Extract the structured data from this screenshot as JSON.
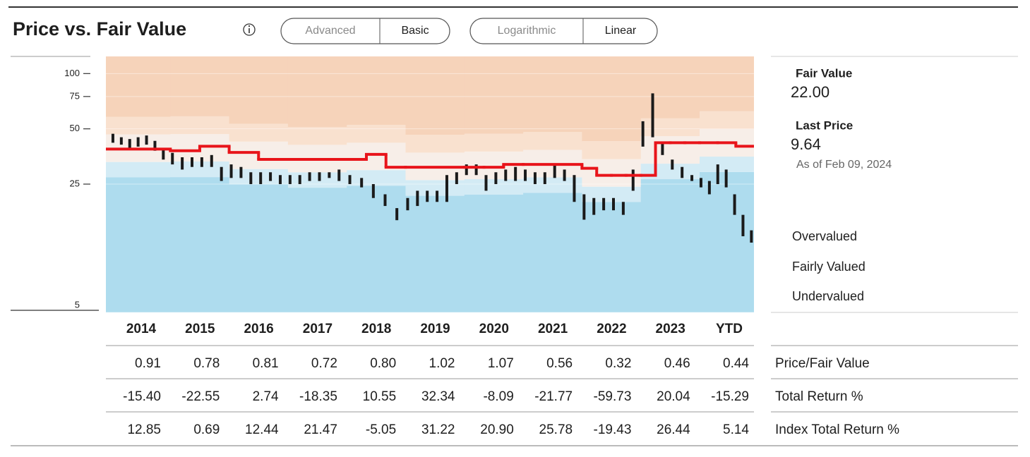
{
  "header": {
    "title": "Price vs. Fair Value",
    "toggles": [
      [
        "Advanced",
        "Basic"
      ],
      [
        "Logarithmic",
        "Linear"
      ]
    ]
  },
  "chart_data": {
    "type": "valuation",
    "log_scale": true,
    "ylim": [
      5,
      124
    ],
    "yticks": [
      5,
      25,
      50,
      75,
      100
    ],
    "grid": true,
    "columns": [
      "2014",
      "2015",
      "2016",
      "2017",
      "2018",
      "2019",
      "2020",
      "2021",
      "2022",
      "2023",
      "YTD"
    ],
    "fair_value": {
      "color": "#e8141a",
      "values": [
        [
          38.8
        ],
        [
          38.0,
          40.2
        ],
        [
          37.2,
          34.1
        ],
        [
          34.1
        ],
        [
          34.1,
          36.3,
          30.9
        ],
        [
          30.9
        ],
        [
          30.9,
          30.9,
          32.0
        ],
        [
          32.0
        ],
        [
          30.5,
          27.9,
          27.9,
          27.9
        ],
        [
          27.9,
          42.0,
          42.0,
          42.0
        ],
        [
          42.0,
          42.0,
          40.2
        ]
      ]
    },
    "price": {
      "color": "#1a1a1a",
      "low": [
        [
          42,
          41,
          39,
          40,
          41,
          38,
          34
        ],
        [
          32,
          30,
          31,
          31,
          31,
          26
        ],
        [
          27,
          27,
          25,
          25,
          26,
          25
        ],
        [
          25,
          25,
          26,
          26,
          27,
          26
        ],
        [
          25,
          24,
          21,
          19,
          15.9
        ],
        [
          18,
          19,
          20,
          20,
          20,
          25
        ],
        [
          28,
          28,
          23,
          25,
          26,
          26
        ],
        [
          26,
          25,
          25,
          27,
          26,
          20
        ],
        [
          16,
          17,
          18,
          18,
          17,
          23
        ],
        [
          40,
          45,
          36,
          30,
          27,
          26
        ],
        [
          24,
          22,
          25,
          24,
          17,
          13,
          12
        ]
      ],
      "high": [
        [
          47,
          45,
          44,
          45,
          46,
          43,
          39
        ],
        [
          37,
          35,
          35,
          35,
          36,
          31
        ],
        [
          32,
          31,
          29,
          29,
          29,
          28
        ],
        [
          28,
          28,
          29,
          29,
          29,
          30
        ],
        [
          28,
          27,
          25,
          22,
          18.5
        ],
        [
          21,
          23,
          23,
          23,
          28,
          29
        ],
        [
          32,
          32,
          28,
          29,
          30,
          31
        ],
        [
          30,
          29,
          29,
          32,
          30,
          28
        ],
        [
          22,
          21,
          21,
          21,
          20,
          30
        ],
        [
          55,
          78,
          42,
          34,
          31,
          28
        ],
        [
          27,
          26,
          32,
          30,
          22,
          17,
          14
        ]
      ]
    },
    "bands": {
      "colors": [
        "#aedcee",
        "#d3ebf5",
        "#f7eee8",
        "#f9e1cf",
        "#f6d3ba"
      ],
      "bounds": [
        [
          27.2,
          27.3,
          24.9,
          23.9,
          24.5,
          21.6,
          21.9,
          22.4,
          20.0,
          26.6,
          29.1
        ],
        [
          33.0,
          33.2,
          30.2,
          29.0,
          29.8,
          26.3,
          26.6,
          27.2,
          24.2,
          32.3,
          35.3
        ],
        [
          46.6,
          46.8,
          42.6,
          40.9,
          42.0,
          37.1,
          37.6,
          38.4,
          34.2,
          45.6,
          49.8
        ],
        [
          58.2,
          58.5,
          53.3,
          51.2,
          52.5,
          46.4,
          47.0,
          48.0,
          42.8,
          57.0,
          62.3
        ]
      ]
    },
    "legend": [
      "Overvalued",
      "Fairly Valued",
      "Undervalued"
    ]
  },
  "summary": {
    "fair_value_label": "Fair Value",
    "fair_value": "22.00",
    "last_price_label": "Last Price",
    "last_price": "9.64",
    "as_of": "As of Feb 09, 2024"
  },
  "table": {
    "rows": [
      {
        "label": "Price/Fair Value",
        "cells": [
          "0.91",
          "0.78",
          "0.81",
          "0.72",
          "0.80",
          "1.02",
          "1.07",
          "0.56",
          "0.32",
          "0.46",
          "0.44"
        ]
      },
      {
        "label": "Total Return %",
        "cells": [
          "-15.40",
          "-22.55",
          "2.74",
          "-18.35",
          "10.55",
          "32.34",
          "-8.09",
          "-21.77",
          "-59.73",
          "20.04",
          "-15.29"
        ]
      },
      {
        "label": "Index Total Return %",
        "cells": [
          "12.85",
          "0.69",
          "12.44",
          "21.47",
          "-5.05",
          "31.22",
          "20.90",
          "25.78",
          "-19.43",
          "26.44",
          "5.14"
        ]
      }
    ]
  }
}
